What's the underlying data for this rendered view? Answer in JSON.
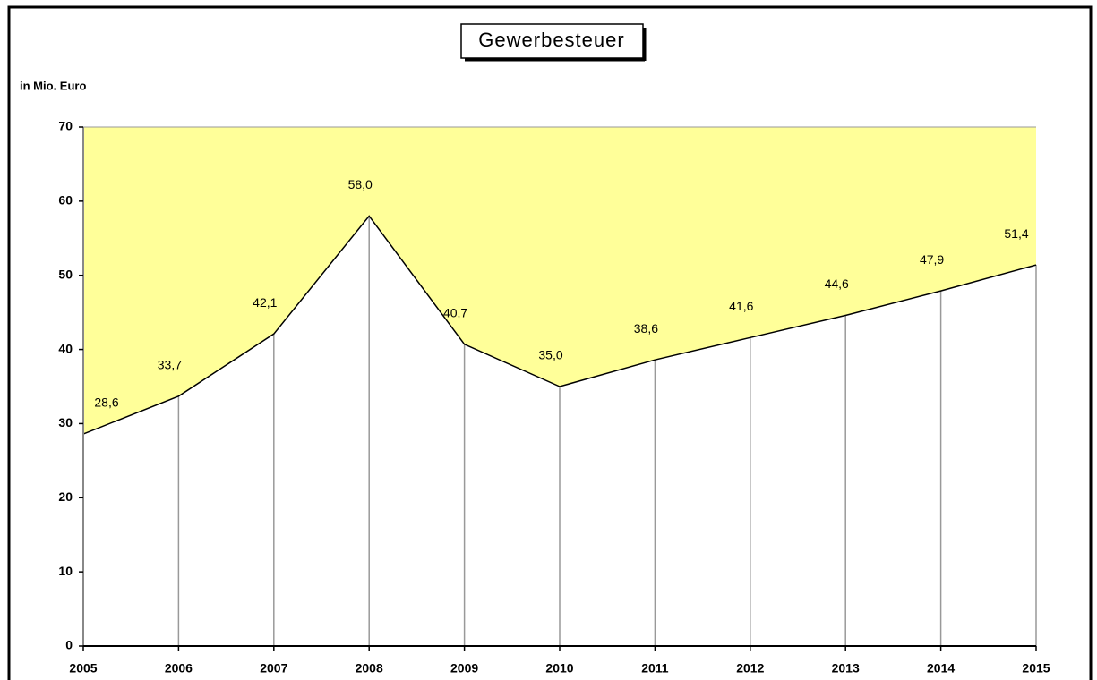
{
  "chart_data": {
    "type": "line",
    "title": "Gewerbesteuer",
    "y_label": "in Mio. Euro",
    "categories": [
      "2005",
      "2006",
      "2007",
      "2008",
      "2009",
      "2010",
      "2011",
      "2012",
      "2013",
      "2014",
      "2015"
    ],
    "values": [
      28.6,
      33.7,
      42.1,
      58.0,
      40.7,
      35.0,
      38.6,
      41.6,
      44.6,
      47.9,
      51.4
    ],
    "value_labels": [
      "28,6",
      "33,7",
      "42,1",
      "58,0",
      "40,7",
      "35,0",
      "38,6",
      "41,6",
      "44,6",
      "47,9",
      "51,4"
    ],
    "color": "#000000",
    "fill_color": "#ffff99",
    "ylim": [
      0,
      70
    ],
    "yticks": [
      0,
      10,
      20,
      30,
      40,
      50,
      60,
      70
    ],
    "grid": false
  }
}
